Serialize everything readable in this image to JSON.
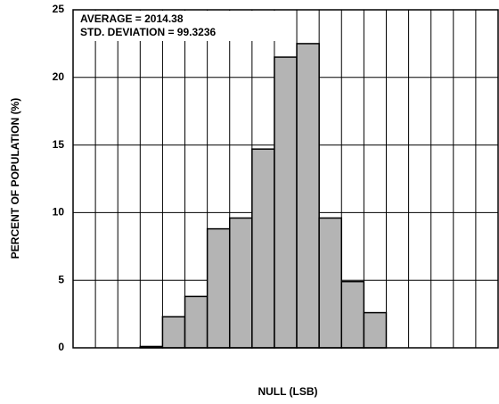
{
  "chart_data": {
    "type": "bar",
    "annotations": [
      "AVERAGE = 2014.38",
      "STD. DEVIATION = 99.3236"
    ],
    "xlabel": "NULL (LSB)",
    "ylabel": "PERCENT OF POPULATION (%)",
    "categories": [
      null,
      null,
      null,
      null,
      null,
      null,
      null,
      null,
      null,
      null,
      null,
      null,
      null,
      null,
      null,
      null,
      null,
      null,
      null
    ],
    "values": [
      0,
      0,
      0,
      0.1,
      2.3,
      3.8,
      8.8,
      9.6,
      14.7,
      21.5,
      22.5,
      9.6,
      4.9,
      2.6,
      0,
      0,
      0,
      0,
      0
    ],
    "color": "#b4b4b4",
    "ylim": [
      0,
      25
    ],
    "yticks": [
      0,
      5,
      10,
      15,
      20,
      25
    ],
    "grid": true
  }
}
